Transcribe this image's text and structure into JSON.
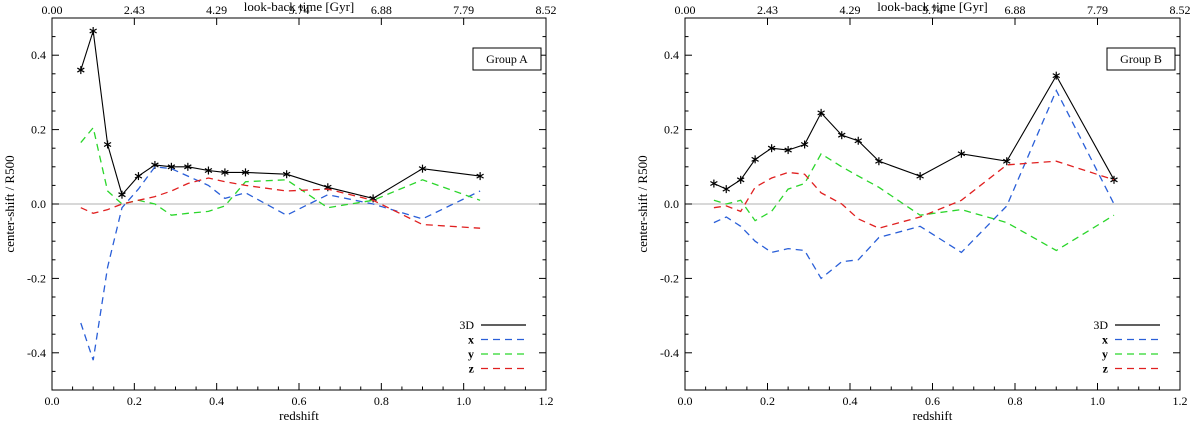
{
  "colors": {
    "3D": "#000000",
    "x": "#2a5fd8",
    "y": "#2bd62b",
    "z": "#e02020",
    "zero_line": "#b0b0b0"
  },
  "chart_data": [
    {
      "type": "line",
      "panel_label": "Group A",
      "xlabel": "redshift",
      "ylabel": "center-shift / R500",
      "top_axis_label": "look-back time [Gyr]",
      "xlim": [
        0.0,
        1.2
      ],
      "ylim": [
        -0.5,
        0.5
      ],
      "x_ticks": [
        "0.0",
        "0.2",
        "0.4",
        "0.6",
        "0.8",
        "1.0",
        "1.2"
      ],
      "y_ticks": [
        "-0.4",
        "-0.2",
        "0.0",
        "0.2",
        "0.4"
      ],
      "top_ticks": [
        "0.00",
        "2.43",
        "4.29",
        "5.74",
        "6.88",
        "7.79",
        "8.52"
      ],
      "legend_position": "bottom-right",
      "series": [
        {
          "name": "3D",
          "dash": false,
          "markers": true,
          "x": [
            0.07,
            0.1,
            0.135,
            0.17,
            0.21,
            0.25,
            0.29,
            0.33,
            0.38,
            0.42,
            0.47,
            0.57,
            0.67,
            0.78,
            0.9,
            1.04
          ],
          "y": [
            0.36,
            0.465,
            0.16,
            0.025,
            0.075,
            0.105,
            0.1,
            0.1,
            0.09,
            0.085,
            0.085,
            0.08,
            0.045,
            0.015,
            0.095,
            0.075
          ]
        },
        {
          "name": "x",
          "dash": true,
          "markers": false,
          "x": [
            0.07,
            0.1,
            0.135,
            0.17,
            0.21,
            0.25,
            0.29,
            0.33,
            0.38,
            0.42,
            0.47,
            0.57,
            0.67,
            0.78,
            0.9,
            1.04
          ],
          "y": [
            -0.32,
            -0.42,
            -0.17,
            -0.01,
            0.04,
            0.1,
            0.095,
            0.075,
            0.05,
            0.015,
            0.03,
            -0.03,
            0.025,
            0.0,
            -0.04,
            0.035
          ]
        },
        {
          "name": "y",
          "dash": true,
          "markers": false,
          "x": [
            0.07,
            0.1,
            0.135,
            0.17,
            0.21,
            0.25,
            0.29,
            0.33,
            0.38,
            0.42,
            0.47,
            0.57,
            0.67,
            0.78,
            0.9,
            1.04
          ],
          "y": [
            0.165,
            0.205,
            0.035,
            0.0,
            0.01,
            0.0,
            -0.03,
            -0.025,
            -0.02,
            -0.005,
            0.06,
            0.065,
            -0.01,
            0.01,
            0.065,
            0.01
          ]
        },
        {
          "name": "z",
          "dash": true,
          "markers": false,
          "x": [
            0.07,
            0.1,
            0.135,
            0.17,
            0.21,
            0.25,
            0.29,
            0.33,
            0.38,
            0.42,
            0.47,
            0.57,
            0.67,
            0.78,
            0.9,
            1.04
          ],
          "y": [
            -0.01,
            -0.025,
            -0.015,
            0.0,
            0.01,
            0.02,
            0.035,
            0.055,
            0.07,
            0.06,
            0.05,
            0.035,
            0.04,
            0.01,
            -0.055,
            -0.065
          ]
        }
      ]
    },
    {
      "type": "line",
      "panel_label": "Group B",
      "xlabel": "redshift",
      "ylabel": "center-shift / R500",
      "top_axis_label": "look-back time [Gyr]",
      "xlim": [
        0.0,
        1.2
      ],
      "ylim": [
        -0.5,
        0.5
      ],
      "x_ticks": [
        "0.0",
        "0.2",
        "0.4",
        "0.6",
        "0.8",
        "1.0",
        "1.2"
      ],
      "y_ticks": [
        "-0.4",
        "-0.2",
        "0.0",
        "0.2",
        "0.4"
      ],
      "top_ticks": [
        "0.00",
        "2.43",
        "4.29",
        "5.74",
        "6.88",
        "7.79",
        "8.52"
      ],
      "legend_position": "bottom-right",
      "series": [
        {
          "name": "3D",
          "dash": false,
          "markers": true,
          "x": [
            0.07,
            0.1,
            0.135,
            0.17,
            0.21,
            0.25,
            0.29,
            0.33,
            0.38,
            0.42,
            0.47,
            0.57,
            0.67,
            0.78,
            0.9,
            1.04
          ],
          "y": [
            0.055,
            0.04,
            0.065,
            0.12,
            0.15,
            0.145,
            0.16,
            0.245,
            0.185,
            0.17,
            0.115,
            0.075,
            0.135,
            0.115,
            0.345,
            0.065
          ]
        },
        {
          "name": "x",
          "dash": true,
          "markers": false,
          "x": [
            0.07,
            0.1,
            0.135,
            0.17,
            0.21,
            0.25,
            0.29,
            0.33,
            0.38,
            0.42,
            0.47,
            0.57,
            0.67,
            0.78,
            0.9,
            1.04
          ],
          "y": [
            -0.05,
            -0.035,
            -0.06,
            -0.1,
            -0.13,
            -0.12,
            -0.125,
            -0.2,
            -0.155,
            -0.15,
            -0.09,
            -0.06,
            -0.13,
            -0.005,
            0.305,
            0.0
          ]
        },
        {
          "name": "y",
          "dash": true,
          "markers": false,
          "x": [
            0.07,
            0.1,
            0.135,
            0.17,
            0.21,
            0.25,
            0.29,
            0.33,
            0.38,
            0.42,
            0.47,
            0.57,
            0.67,
            0.78,
            0.9,
            1.04
          ],
          "y": [
            0.01,
            0.0,
            0.01,
            -0.045,
            -0.02,
            0.04,
            0.055,
            0.135,
            0.1,
            0.075,
            0.045,
            -0.03,
            -0.015,
            -0.05,
            -0.125,
            -0.03
          ]
        },
        {
          "name": "z",
          "dash": true,
          "markers": false,
          "x": [
            0.07,
            0.1,
            0.135,
            0.17,
            0.21,
            0.25,
            0.29,
            0.33,
            0.38,
            0.42,
            0.47,
            0.57,
            0.67,
            0.78,
            0.9,
            1.04
          ],
          "y": [
            -0.01,
            -0.005,
            -0.02,
            0.045,
            0.07,
            0.085,
            0.08,
            0.03,
            0.0,
            -0.04,
            -0.065,
            -0.035,
            0.01,
            0.105,
            0.115,
            0.065
          ]
        }
      ]
    }
  ]
}
